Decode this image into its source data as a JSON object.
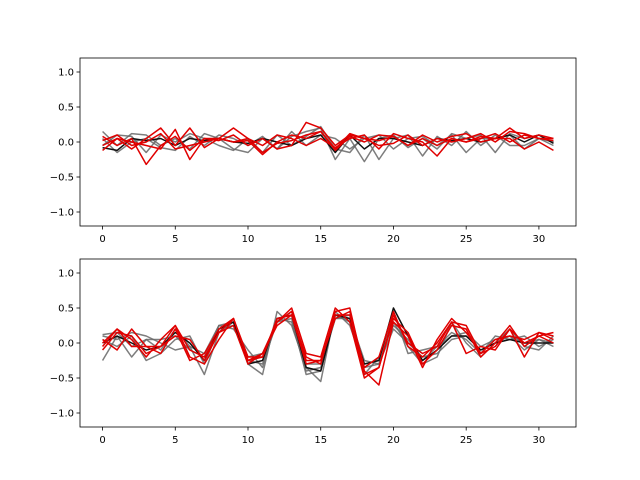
{
  "chart_data": [
    {
      "type": "line",
      "title": "",
      "xlabel": "",
      "ylabel": "",
      "xlim": [
        -1.55,
        32.55
      ],
      "ylim": [
        -1.2,
        1.2
      ],
      "xticks": [
        0,
        5,
        10,
        15,
        20,
        25,
        30
      ],
      "xtick_labels": [
        "0",
        "5",
        "10",
        "15",
        "20",
        "25",
        "30"
      ],
      "yticks": [
        -1.0,
        -0.5,
        0.0,
        0.5,
        1.0
      ],
      "ytick_labels": [
        "−1.0",
        "−0.5",
        "0.0",
        "0.5",
        "1.0"
      ],
      "grid": false,
      "legend": "none",
      "x": [
        0,
        1,
        2,
        3,
        4,
        5,
        6,
        7,
        8,
        9,
        10,
        11,
        12,
        13,
        14,
        15,
        16,
        17,
        18,
        19,
        20,
        21,
        22,
        23,
        24,
        25,
        26,
        27,
        28,
        29,
        30,
        31
      ],
      "series": [
        {
          "color": "#666666",
          "values": [
            0.15,
            -0.05,
            0.12,
            0.1,
            -0.05,
            0.05,
            -0.1,
            0.12,
            0.05,
            -0.1,
            -0.15,
            0.05,
            -0.1,
            0.08,
            0.15,
            0.2,
            -0.25,
            0.05,
            -0.28,
            0.05,
            0.1,
            -0.08,
            0.05,
            -0.1,
            0.12,
            0.05,
            0.1,
            -0.15,
            0.12,
            0.05,
            0.1,
            0.0
          ]
        },
        {
          "color": "#666666",
          "values": [
            -0.05,
            0.1,
            0.08,
            -0.15,
            0.1,
            0.0,
            0.12,
            0.05,
            -0.05,
            -0.12,
            0.05,
            -0.15,
            0.1,
            -0.05,
            0.08,
            0.22,
            -0.1,
            -0.15,
            0.1,
            -0.25,
            0.05,
            0.1,
            -0.2,
            0.08,
            -0.05,
            0.15,
            -0.05,
            0.1,
            -0.05,
            -0.05,
            0.05,
            -0.05
          ]
        },
        {
          "color": "#666666",
          "values": [
            0.05,
            -0.15,
            0.0,
            0.05,
            -0.08,
            -0.12,
            0.08,
            -0.05,
            0.1,
            0.05,
            -0.05,
            0.08,
            -0.1,
            0.15,
            -0.05,
            0.1,
            0.05,
            -0.1,
            0.05,
            0.1,
            -0.1,
            0.05,
            0.08,
            -0.05,
            0.1,
            -0.15,
            0.05,
            0.05,
            0.1,
            -0.1,
            0.05,
            0.0
          ]
        },
        {
          "color": "#111111",
          "values": [
            -0.08,
            -0.12,
            0.05,
            0.02,
            0.05,
            -0.05,
            0.05,
            0.02,
            0.05,
            0.0,
            -0.02,
            0.05,
            0.0,
            -0.05,
            0.05,
            0.1,
            -0.15,
            0.1,
            -0.1,
            0.05,
            0.05,
            0.0,
            -0.05,
            0.05,
            0.02,
            0.05,
            0.0,
            0.05,
            0.1,
            0.0,
            0.1,
            -0.02
          ]
        },
        {
          "color": "#e00000",
          "values": [
            0.08,
            -0.05,
            0.05,
            -0.32,
            -0.05,
            0.08,
            -0.12,
            0.05,
            0.02,
            0.1,
            -0.05,
            0.05,
            -0.1,
            -0.05,
            0.28,
            0.2,
            -0.05,
            0.1,
            0.05,
            0.02,
            0.08,
            -0.05,
            0.1,
            0.0,
            0.08,
            0.12,
            0.0,
            0.05,
            0.2,
            0.05,
            0.1,
            0.05
          ]
        },
        {
          "color": "#e00000",
          "values": [
            -0.05,
            0.05,
            -0.1,
            0.05,
            0.2,
            -0.05,
            0.2,
            -0.08,
            0.05,
            0.0,
            0.02,
            -0.18,
            0.0,
            0.1,
            0.05,
            0.15,
            -0.1,
            0.12,
            0.05,
            -0.05,
            -0.02,
            0.1,
            -0.05,
            0.05,
            0.0,
            0.05,
            0.12,
            0.0,
            0.15,
            0.12,
            0.05,
            0.02
          ]
        },
        {
          "color": "#e00000",
          "values": [
            0.02,
            0.1,
            -0.05,
            0.0,
            0.12,
            -0.1,
            -0.05,
            0.0,
            0.05,
            0.0,
            0.05,
            -0.05,
            0.1,
            0.05,
            -0.05,
            0.05,
            -0.08,
            0.05,
            0.1,
            -0.1,
            0.12,
            0.05,
            0.0,
            -0.2,
            0.05,
            0.0,
            0.08,
            0.05,
            0.05,
            -0.1,
            0.0,
            -0.12
          ]
        },
        {
          "color": "#e00000",
          "values": [
            -0.12,
            0.05,
            0.0,
            -0.05,
            -0.1,
            0.18,
            -0.25,
            0.05,
            0.05,
            0.2,
            0.05,
            -0.15,
            -0.02,
            0.02,
            0.1,
            0.15,
            -0.12,
            0.08,
            0.0,
            0.1,
            0.08,
            -0.05,
            0.05,
            -0.05,
            0.05,
            0.0,
            0.05,
            0.12,
            0.0,
            0.1,
            0.05,
            0.05
          ]
        }
      ]
    },
    {
      "type": "line",
      "title": "",
      "xlabel": "",
      "ylabel": "",
      "xlim": [
        -1.55,
        32.55
      ],
      "ylim": [
        -1.2,
        1.2
      ],
      "xticks": [
        0,
        5,
        10,
        15,
        20,
        25,
        30
      ],
      "xtick_labels": [
        "0",
        "5",
        "10",
        "15",
        "20",
        "25",
        "30"
      ],
      "yticks": [
        -1.0,
        -0.5,
        0.0,
        0.5,
        1.0
      ],
      "ytick_labels": [
        "−1.0",
        "−0.5",
        "0.0",
        "0.5",
        "1.0"
      ],
      "grid": false,
      "legend": "none",
      "x": [
        0,
        1,
        2,
        3,
        4,
        5,
        6,
        7,
        8,
        9,
        10,
        11,
        12,
        13,
        14,
        15,
        16,
        17,
        18,
        19,
        20,
        21,
        22,
        23,
        24,
        25,
        26,
        27,
        28,
        29,
        30,
        31
      ],
      "series": [
        {
          "color": "#666666",
          "values": [
            -0.25,
            0.1,
            -0.2,
            0.05,
            -0.1,
            0.2,
            -0.05,
            -0.45,
            0.15,
            0.3,
            -0.3,
            -0.45,
            0.45,
            0.25,
            -0.35,
            -0.55,
            0.45,
            0.25,
            -0.35,
            -0.3,
            0.3,
            -0.05,
            -0.3,
            -0.2,
            0.3,
            0.0,
            -0.2,
            0.0,
            0.2,
            -0.05,
            -0.1,
            0.1
          ]
        },
        {
          "color": "#666666",
          "values": [
            0.12,
            0.15,
            -0.05,
            0.05,
            0.05,
            0.1,
            -0.1,
            -0.2,
            0.25,
            0.2,
            -0.1,
            -0.35,
            0.35,
            0.3,
            -0.4,
            -0.35,
            0.35,
            0.4,
            -0.45,
            -0.2,
            0.25,
            0.05,
            -0.25,
            -0.05,
            0.1,
            0.15,
            -0.05,
            0.05,
            0.1,
            -0.1,
            0.05,
            0.0
          ]
        },
        {
          "color": "#666666",
          "values": [
            0.05,
            -0.05,
            0.1,
            -0.25,
            -0.15,
            0.05,
            0.1,
            -0.3,
            0.2,
            0.25,
            -0.25,
            -0.3,
            0.3,
            0.35,
            -0.45,
            -0.4,
            0.4,
            0.3,
            -0.3,
            -0.25,
            0.45,
            -0.15,
            -0.1,
            -0.05,
            0.15,
            0.05,
            -0.15,
            0.1,
            0.05,
            0.1,
            -0.05,
            0.05
          ]
        },
        {
          "color": "#666666",
          "values": [
            0.1,
            0.05,
            0.15,
            0.1,
            0.0,
            -0.1,
            -0.05,
            -0.15,
            0.25,
            0.3,
            -0.2,
            -0.15,
            0.3,
            0.45,
            -0.3,
            -0.3,
            0.35,
            0.35,
            -0.25,
            -0.3,
            0.2,
            0.0,
            -0.2,
            -0.15,
            0.05,
            0.1,
            -0.1,
            0.0,
            0.1,
            0.0,
            0.05,
            -0.05
          ]
        },
        {
          "color": "#111111",
          "values": [
            0.0,
            0.1,
            0.0,
            -0.1,
            -0.05,
            0.15,
            0.0,
            -0.25,
            0.2,
            0.3,
            -0.3,
            -0.25,
            0.35,
            0.4,
            -0.35,
            -0.4,
            0.4,
            0.35,
            -0.3,
            -0.25,
            0.5,
            0.1,
            -0.25,
            -0.1,
            0.1,
            0.1,
            -0.1,
            0.0,
            0.05,
            0.0,
            0.0,
            0.0
          ]
        },
        {
          "color": "#e00000",
          "values": [
            -0.05,
            0.2,
            0.05,
            -0.2,
            0.05,
            0.25,
            -0.2,
            -0.3,
            0.05,
            0.35,
            -0.2,
            -0.2,
            0.3,
            0.5,
            -0.15,
            -0.2,
            0.5,
            0.3,
            -0.5,
            -0.35,
            0.35,
            0.15,
            -0.3,
            -0.1,
            0.25,
            0.2,
            -0.2,
            0.0,
            0.25,
            -0.05,
            0.1,
            0.0
          ]
        },
        {
          "color": "#e00000",
          "values": [
            0.05,
            -0.1,
            0.2,
            -0.05,
            -0.15,
            0.2,
            -0.25,
            -0.15,
            0.2,
            0.35,
            -0.25,
            -0.2,
            0.35,
            0.4,
            -0.2,
            -0.3,
            0.45,
            0.5,
            -0.4,
            -0.6,
            0.3,
            0.1,
            -0.35,
            0.05,
            0.35,
            0.15,
            -0.15,
            -0.05,
            0.2,
            -0.2,
            0.15,
            0.05
          ]
        },
        {
          "color": "#e00000",
          "values": [
            -0.1,
            0.15,
            0.1,
            -0.15,
            -0.05,
            0.1,
            0.05,
            -0.25,
            0.15,
            0.25,
            -0.3,
            -0.15,
            0.3,
            0.45,
            -0.25,
            -0.25,
            0.35,
            0.45,
            -0.35,
            -0.2,
            0.45,
            -0.05,
            -0.2,
            0.0,
            0.3,
            -0.15,
            -0.05,
            -0.1,
            0.2,
            0.0,
            0.1,
            0.15
          ]
        },
        {
          "color": "#e00000",
          "values": [
            0.0,
            0.2,
            -0.05,
            -0.05,
            -0.05,
            0.25,
            -0.1,
            -0.2,
            0.15,
            0.35,
            -0.25,
            -0.15,
            0.25,
            0.4,
            -0.3,
            -0.25,
            0.4,
            0.4,
            -0.45,
            -0.35,
            0.4,
            0.0,
            -0.15,
            -0.05,
            0.3,
            0.25,
            -0.15,
            0.05,
            0.1,
            0.05,
            0.15,
            0.1
          ]
        }
      ]
    }
  ]
}
